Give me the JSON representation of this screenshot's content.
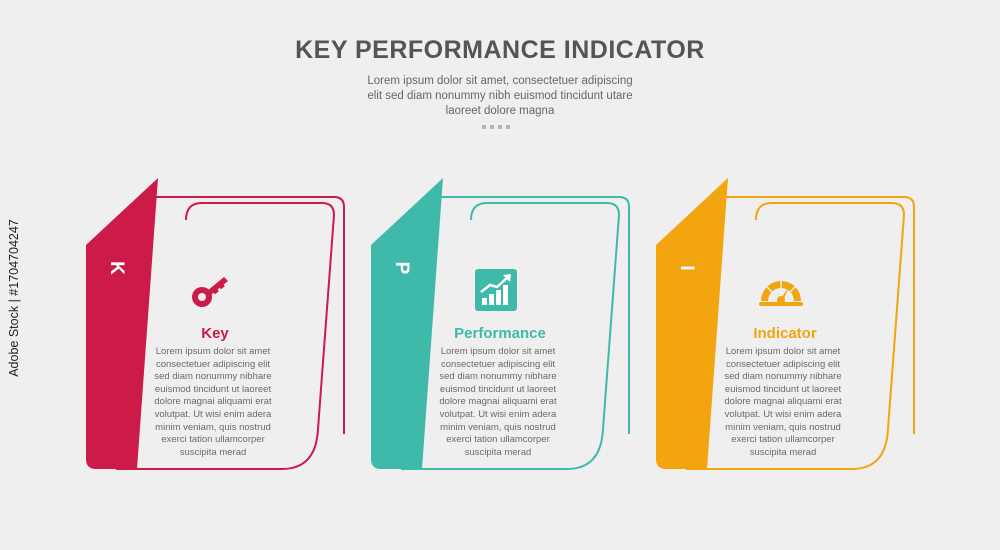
{
  "header": {
    "title": "KEY PERFORMANCE INDICATOR",
    "subtitle_lines": [
      "Lorem ipsum dolor sit amet, consectetuer adipiscing",
      "elit sed diam nonummy nibh euismod tincidunt utare",
      "laoreet dolore magna"
    ]
  },
  "cards": [
    {
      "letter": "K",
      "label": "Key",
      "icon": "key-icon",
      "color": "#cc1b48",
      "desc_lines": [
        "Lorem ipsum dolor sit amet",
        "consectetuer adipiscing elit",
        "sed diam nonummy nibhare",
        "euismod tincidunt ut laoreet",
        "dolore magnai aliquami erat",
        "volutpat. Ut wisi enim adera",
        "minim veniam, quis nostrud",
        "exerci tation ullamcorper",
        "suscipita merad"
      ]
    },
    {
      "letter": "P",
      "label": "Performance",
      "icon": "growth-chart-icon",
      "color": "#3fb9aa",
      "desc_lines": [
        "Lorem ipsum dolor sit amet",
        "consectetuer adipiscing elit",
        "sed diam nonummy nibhare",
        "euismod tincidunt ut laoreet",
        "dolore magnai aliquami erat",
        "volutpat. Ut wisi enim adera",
        "minim veniam, quis nostrud",
        "exerci tation ullamcorper",
        "suscipita merad"
      ]
    },
    {
      "letter": "I",
      "label": "Indicator",
      "icon": "gauge-icon",
      "color": "#f2a50f",
      "desc_lines": [
        "Lorem ipsum dolor sit amet",
        "consectetuer adipiscing elit",
        "sed diam nonummy nibhare",
        "euismod tincidunt ut laoreet",
        "dolore magnai aliquami erat",
        "volutpat. Ut wisi enim adera",
        "minim veniam, quis nostrud",
        "exerci tation ullamcorper",
        "suscipita merad"
      ]
    }
  ],
  "side_caption": "Adobe Stock | #1704704247"
}
